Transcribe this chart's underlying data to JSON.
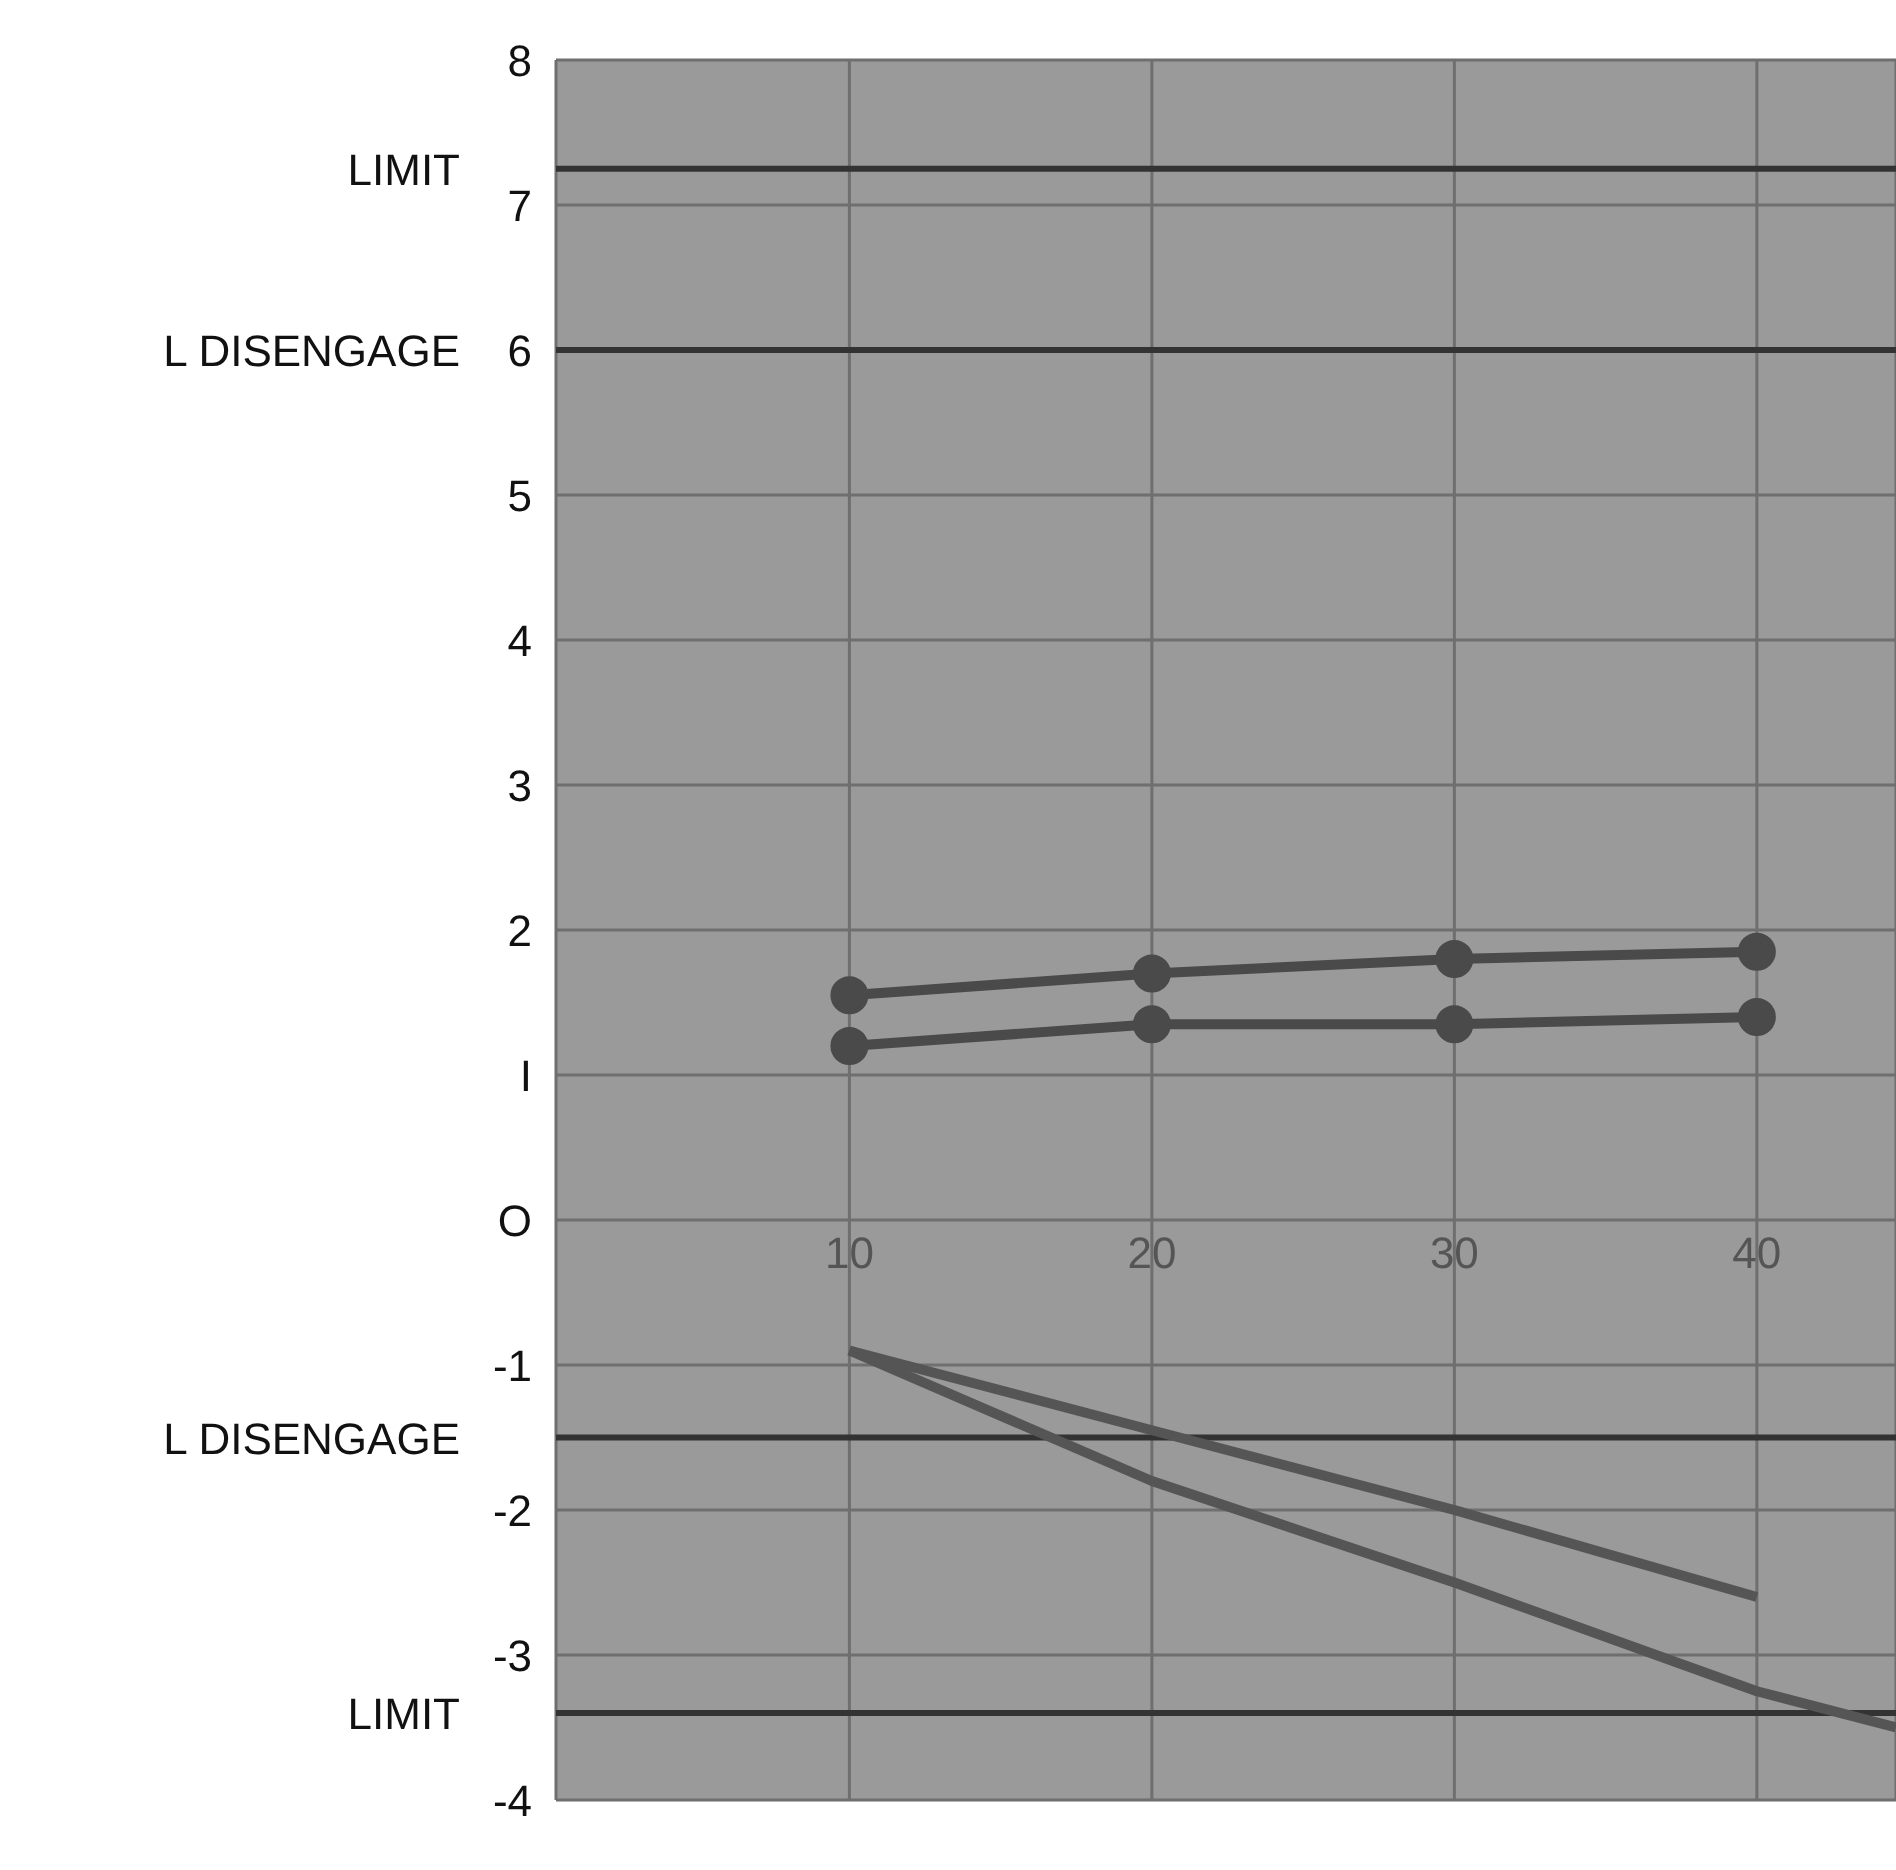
{
  "chart_data": {
    "type": "line",
    "xlim": [
      0.3,
      44.6
    ],
    "xticks": [
      10,
      20,
      30,
      40
    ],
    "ylim": [
      -4,
      8
    ],
    "yticks": [
      8,
      7,
      6,
      5,
      4,
      3,
      2,
      {
        "value": 1,
        "label": "I"
      },
      {
        "value": 0,
        "label": "O"
      },
      -1,
      -2,
      -3,
      -4
    ],
    "grid": true,
    "series": [
      {
        "color": "#4a4a4a",
        "marker": "circle",
        "x": [
          10,
          20,
          30,
          40
        ],
        "values": [
          1.55,
          1.7,
          1.8,
          1.85
        ]
      },
      {
        "color": "#4a4a4a",
        "marker": "circle",
        "x": [
          10,
          20,
          30,
          40
        ],
        "values": [
          1.2,
          1.35,
          1.35,
          1.4
        ]
      },
      {
        "color": "#555555",
        "marker": "none",
        "x": [
          10,
          20,
          30,
          40
        ],
        "values": [
          -0.9,
          -1.45,
          -2.0,
          -2.6
        ]
      },
      {
        "color": "#555555",
        "marker": "none",
        "x": [
          10,
          20,
          30,
          40,
          44.6
        ],
        "values": [
          -0.9,
          -1.8,
          -2.5,
          -3.25,
          -3.5
        ]
      }
    ],
    "ref_lines": [
      {
        "axis": "y",
        "value": 7.25,
        "label": "LIMIT",
        "color": "#333333"
      },
      {
        "axis": "y",
        "value": 6,
        "label": "L DISENGAGE",
        "color": "#333333"
      },
      {
        "axis": "y",
        "value": -1.5,
        "label": "L DISENGAGE",
        "color": "#333333"
      },
      {
        "axis": "y",
        "value": -3.4,
        "label": "LIMIT",
        "color": "#333333"
      }
    ]
  }
}
